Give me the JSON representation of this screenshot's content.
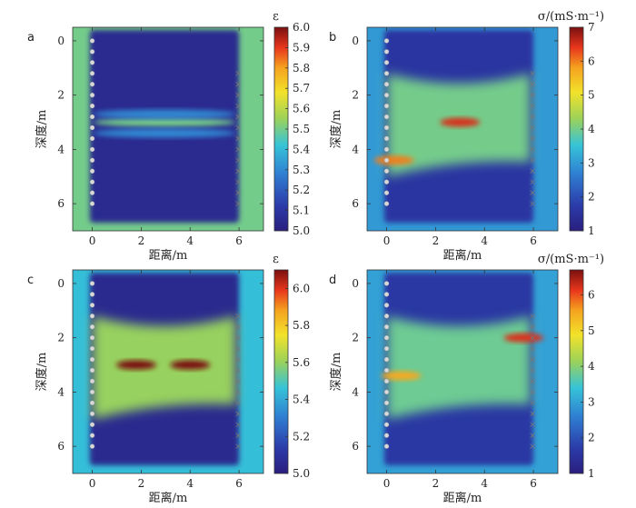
{
  "chart_data": [
    {
      "type": "heatmap",
      "panel": "a",
      "xlabel": "距离/m",
      "ylabel": "深度/m",
      "x_ticks": [
        "0",
        "2",
        "4",
        "6"
      ],
      "y_ticks": [
        "0",
        "2",
        "4",
        "6"
      ],
      "xlim": [
        -0.8,
        7.0
      ],
      "ylim": [
        7.0,
        -0.5
      ],
      "colorbar": {
        "label": "ε",
        "min": 5.0,
        "max": 6.0,
        "ticks": [
          "6.0",
          "5.9",
          "5.8",
          "5.7",
          "5.6",
          "5.5",
          "5.4",
          "5.3",
          "5.2",
          "5.1",
          "5.0"
        ]
      },
      "background_value": 5.5,
      "field_value": 5.05,
      "features": [
        {
          "kind": "band",
          "depth": 3.0,
          "value": 5.5
        },
        {
          "kind": "band",
          "depth": 2.7,
          "value": 5.3
        },
        {
          "kind": "band",
          "depth": 3.4,
          "value": 5.3
        }
      ],
      "left_markers": "o",
      "right_markers": "x"
    },
    {
      "type": "heatmap",
      "panel": "b",
      "xlabel": "距离/m",
      "ylabel": "深度/m",
      "x_ticks": [
        "0",
        "2",
        "4",
        "6"
      ],
      "y_ticks": [
        "0",
        "2",
        "4",
        "6"
      ],
      "xlim": [
        -0.8,
        7.0
      ],
      "ylim": [
        7.0,
        -0.5
      ],
      "colorbar": {
        "label": "σ/(mS·m⁻¹)",
        "min": 1,
        "max": 7,
        "ticks": [
          "7",
          "6",
          "5",
          "4",
          "3",
          "2",
          "1"
        ]
      },
      "background_value": 3.0,
      "field_value": 1.6,
      "features": [
        {
          "kind": "body",
          "depth_range": [
            1.2,
            5.0
          ],
          "value": 4.0
        },
        {
          "kind": "anomaly",
          "x": 3.0,
          "depth": 3.0,
          "value": 6.5
        },
        {
          "kind": "anomaly",
          "x": 0.3,
          "depth": 4.4,
          "value": 6.0
        }
      ],
      "left_markers": "o",
      "right_markers": "x"
    },
    {
      "type": "heatmap",
      "panel": "c",
      "xlabel": "距离/m",
      "ylabel": "深度/m",
      "x_ticks": [
        "0",
        "2",
        "4",
        "6"
      ],
      "y_ticks": [
        "0",
        "2",
        "4",
        "6"
      ],
      "xlim": [
        -0.8,
        7.0
      ],
      "ylim": [
        7.0,
        -0.5
      ],
      "colorbar": {
        "label": "ε",
        "min": 5.0,
        "max": 6.1,
        "ticks": [
          "6.0",
          "5.8",
          "5.6",
          "5.4",
          "5.2",
          "5.0"
        ]
      },
      "background_value": 5.45,
      "field_value": 5.05,
      "features": [
        {
          "kind": "body",
          "depth_range": [
            1.2,
            5.0
          ],
          "value": 5.6
        },
        {
          "kind": "anomaly",
          "x": 1.8,
          "depth": 3.0,
          "value": 6.1
        },
        {
          "kind": "anomaly",
          "x": 4.0,
          "depth": 3.0,
          "value": 6.1
        }
      ],
      "left_markers": "o",
      "right_markers": "x"
    },
    {
      "type": "heatmap",
      "panel": "d",
      "xlabel": "距离/m",
      "ylabel": "深度/m",
      "x_ticks": [
        "0",
        "2",
        "4",
        "6"
      ],
      "y_ticks": [
        "0",
        "2",
        "4",
        "6"
      ],
      "xlim": [
        -0.8,
        7.0
      ],
      "ylim": [
        7.0,
        -0.5
      ],
      "colorbar": {
        "label": "σ/(mS·m⁻¹)",
        "min": 1,
        "max": 6.7,
        "ticks": [
          "6",
          "5",
          "4",
          "3",
          "2",
          "1"
        ]
      },
      "background_value": 3.0,
      "field_value": 1.6,
      "features": [
        {
          "kind": "body",
          "depth_range": [
            1.2,
            5.0
          ],
          "value": 3.8
        },
        {
          "kind": "anomaly",
          "x": 5.6,
          "depth": 2.0,
          "value": 6.2
        },
        {
          "kind": "anomaly",
          "x": 0.6,
          "depth": 3.4,
          "value": 5.5
        }
      ],
      "left_markers": "o",
      "right_markers": "x"
    }
  ]
}
